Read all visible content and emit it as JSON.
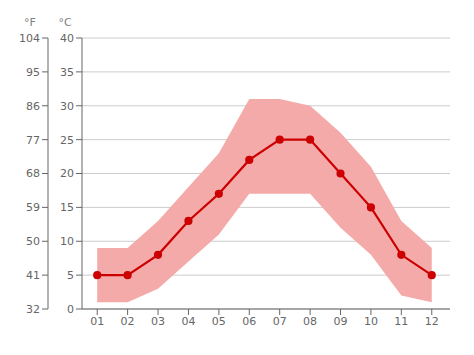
{
  "chart_data": {
    "type": "line",
    "x": [
      1,
      2,
      3,
      4,
      5,
      6,
      7,
      8,
      9,
      10,
      11,
      12
    ],
    "xlim": [
      0.5,
      12.6
    ],
    "xticks": [
      {
        "value": 1,
        "label": "01"
      },
      {
        "value": 2,
        "label": "02"
      },
      {
        "value": 3,
        "label": "03"
      },
      {
        "value": 4,
        "label": "04"
      },
      {
        "value": 5,
        "label": "05"
      },
      {
        "value": 6,
        "label": "06"
      },
      {
        "value": 7,
        "label": "07"
      },
      {
        "value": 8,
        "label": "08"
      },
      {
        "value": 9,
        "label": "09"
      },
      {
        "value": 10,
        "label": "10"
      },
      {
        "value": 11,
        "label": "11"
      },
      {
        "value": 12,
        "label": "12"
      }
    ],
    "ylim": [
      0,
      40
    ],
    "yticks": [
      0,
      5,
      10,
      15,
      20,
      25,
      30,
      35,
      40
    ],
    "y_label": "°C",
    "y2lim": [
      32,
      104
    ],
    "y2ticks": [
      32,
      41,
      50,
      59,
      68,
      77,
      86,
      95,
      104
    ],
    "y2_label": "°F",
    "grid": true,
    "series": [
      {
        "type": "area",
        "color": "#f5aaaa",
        "low": [
          1,
          1,
          3,
          7,
          11,
          17,
          17,
          17,
          12,
          8,
          2,
          1
        ],
        "high": [
          9,
          9,
          13,
          18,
          23,
          31,
          31,
          30,
          26,
          21,
          13,
          9
        ]
      },
      {
        "type": "line",
        "color": "#cc0000",
        "marker": "circle",
        "values": [
          5,
          5,
          8,
          13,
          17,
          22,
          25,
          25,
          20,
          15,
          8,
          5
        ]
      }
    ]
  }
}
